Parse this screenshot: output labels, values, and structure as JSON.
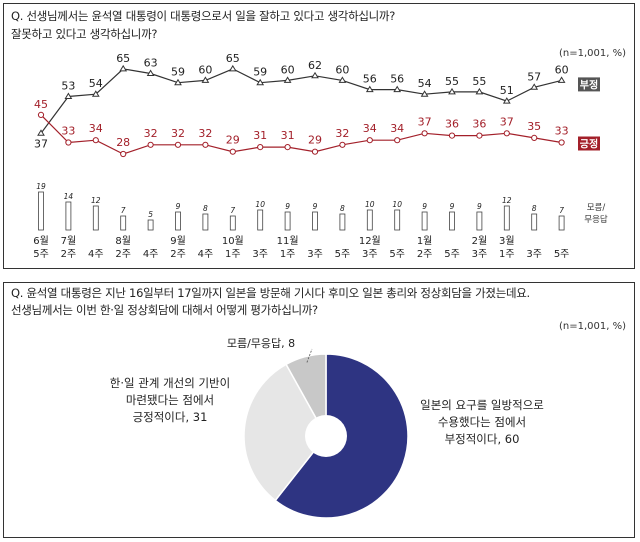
{
  "chart_data": [
    {
      "type": "line",
      "title": "Q. 선생님께서는 윤석열 대통령이 대통령으로서 일을 잘하고 있다고 생각하십니까? 잘못하고 있다고 생각하십니까?",
      "note": "(n=1,001, %)",
      "x": [
        [
          "6월",
          "5주"
        ],
        [
          "7월",
          "2주"
        ],
        [
          "",
          "4주"
        ],
        [
          "8월",
          "2주"
        ],
        [
          "",
          "4주"
        ],
        [
          "9월",
          "2주"
        ],
        [
          "",
          "4주"
        ],
        [
          "10월",
          "1주"
        ],
        [
          "",
          "3주"
        ],
        [
          "11월",
          "1주"
        ],
        [
          "",
          "3주"
        ],
        [
          "",
          "5주"
        ],
        [
          "12월",
          "3주"
        ],
        [
          "",
          "5주"
        ],
        [
          "1월",
          "2주"
        ],
        [
          "",
          "5주"
        ],
        [
          "2월",
          "3주"
        ],
        [
          "3월",
          "1주"
        ],
        [
          "",
          "3주"
        ],
        [
          "",
          "5주"
        ]
      ],
      "series": [
        {
          "name": "부정",
          "color": "#333333",
          "values": [
            37,
            53,
            54,
            65,
            63,
            59,
            60,
            65,
            59,
            60,
            62,
            60,
            56,
            56,
            54,
            55,
            55,
            51,
            57,
            60
          ]
        },
        {
          "name": "긍정",
          "color": "#a3202a",
          "values": [
            45,
            33,
            34,
            28,
            32,
            32,
            32,
            29,
            31,
            31,
            29,
            32,
            34,
            34,
            37,
            36,
            36,
            37,
            35,
            33
          ]
        }
      ],
      "bars": {
        "name": "모름/무응답",
        "values": [
          19,
          14,
          12,
          7,
          5,
          9,
          8,
          7,
          10,
          9,
          9,
          8,
          10,
          10,
          9,
          9,
          9,
          12,
          8,
          7
        ]
      }
    },
    {
      "type": "pie",
      "title": "Q. 윤석열 대통령은 지난 16일부터 17일까지 일본을 방문해 기시다 후미오 일본 총리와 정상회담을 가졌는데요. 선생님께서는 이번 한·일 정상회담에 대해서 어떻게 평가하십니까?",
      "note": "(n=1,001, %)",
      "slices": [
        {
          "label": "일본의 요구를 일방적으로 수용했다는 점에서 부정적이다",
          "value": 60,
          "color": "#2e3482"
        },
        {
          "label": "한·일 관계 개선의 기반이 마련됐다는 점에서 긍정적이다",
          "value": 31,
          "color": "#e6e6e6"
        },
        {
          "label": "모름/무응답",
          "value": 8,
          "color": "#c8c8c8"
        }
      ],
      "slice_texts": [
        [
          "일본의 요구를 일방적으로",
          "수용했다는 점에서",
          "부정적이다, 60"
        ],
        [
          "한·일 관계 개선의 기반이",
          "마련됐다는 점에서",
          "긍정적이다, 31"
        ],
        [
          "모름/무응답, 8"
        ]
      ]
    }
  ],
  "q1_lines": [
    "Q. 선생님께서는 윤석열 대통령이 대통령으로서 일을 잘하고 있다고 생각하십니까?",
    "잘못하고 있다고 생각하십니까?"
  ],
  "q2_lines": [
    "Q. 윤석열 대통령은 지난 16일부터 17일까지 일본을 방문해 기시다 후미오 일본 총리와 정상회담을 가졌는데요.",
    "선생님께서는 이번 한·일 정상회담에 대해서 어떻게 평가하십니까?"
  ],
  "labels": {
    "neg_tag": "부정",
    "pos_tag": "긍정",
    "dk_tag_1": "모름/",
    "dk_tag_2": "무응답"
  }
}
